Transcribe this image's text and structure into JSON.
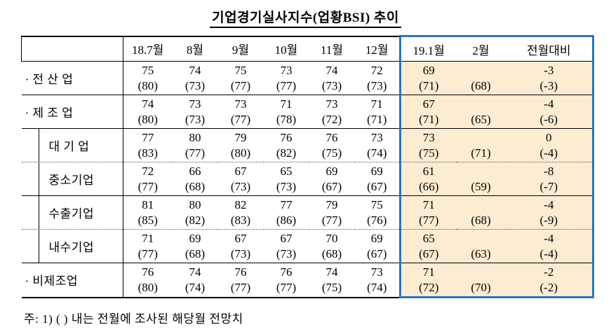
{
  "title": "기업경기실사지수(업황BSI) 추이",
  "note": "주: 1) (  ) 내는 전월에 조사된 해당월 전망치",
  "highlight": {
    "fill": "#fdecd2",
    "border": "#2e74b5"
  },
  "columns": [
    "",
    "18.7월",
    "8월",
    "9월",
    "10월",
    "11월",
    "12월",
    "19.1월",
    "2월",
    "전월대비"
  ],
  "rows": [
    {
      "label": "· 전 산 업",
      "indent": false,
      "sep": "solid",
      "values": [
        [
          "75",
          "(80)"
        ],
        [
          "74",
          "(73)"
        ],
        [
          "75",
          "(77)"
        ],
        [
          "73",
          "(77)"
        ],
        [
          "74",
          "(73)"
        ],
        [
          "72",
          "(73)"
        ],
        [
          "69",
          "(71)"
        ],
        [
          "",
          "(68)"
        ],
        [
          "-3",
          "(-3)"
        ]
      ]
    },
    {
      "label": "· 제 조 업",
      "indent": false,
      "sep": "solid",
      "values": [
        [
          "74",
          "(80)"
        ],
        [
          "73",
          "(73)"
        ],
        [
          "73",
          "(77)"
        ],
        [
          "71",
          "(78)"
        ],
        [
          "73",
          "(72)"
        ],
        [
          "71",
          "(71)"
        ],
        [
          "67",
          "(71)"
        ],
        [
          "",
          "(65)"
        ],
        [
          "-4",
          "(-6)"
        ]
      ]
    },
    {
      "label": "대 기 업",
      "indent": true,
      "sep": "dotted",
      "values": [
        [
          "77",
          "(83)"
        ],
        [
          "80",
          "(77)"
        ],
        [
          "79",
          "(80)"
        ],
        [
          "76",
          "(82)"
        ],
        [
          "76",
          "(75)"
        ],
        [
          "73",
          "(74)"
        ],
        [
          "73",
          "(75)"
        ],
        [
          "",
          "(71)"
        ],
        [
          "0",
          "(-4)"
        ]
      ]
    },
    {
      "label": "중소기업",
      "indent": true,
      "sep": "solid",
      "values": [
        [
          "72",
          "(77)"
        ],
        [
          "66",
          "(68)"
        ],
        [
          "67",
          "(73)"
        ],
        [
          "65",
          "(73)"
        ],
        [
          "69",
          "(67)"
        ],
        [
          "69",
          "(67)"
        ],
        [
          "61",
          "(66)"
        ],
        [
          "",
          "(59)"
        ],
        [
          "-8",
          "(-7)"
        ]
      ]
    },
    {
      "label": "수출기업",
      "indent": true,
      "sep": "dotted",
      "values": [
        [
          "81",
          "(85)"
        ],
        [
          "80",
          "(82)"
        ],
        [
          "82",
          "(83)"
        ],
        [
          "77",
          "(86)"
        ],
        [
          "79",
          "(77)"
        ],
        [
          "75",
          "(76)"
        ],
        [
          "71",
          "(77)"
        ],
        [
          "",
          "(68)"
        ],
        [
          "-4",
          "(-9)"
        ]
      ]
    },
    {
      "label": "내수기업",
      "indent": true,
      "sep": "solid",
      "values": [
        [
          "71",
          "(77)"
        ],
        [
          "69",
          "(68)"
        ],
        [
          "67",
          "(73)"
        ],
        [
          "67",
          "(73)"
        ],
        [
          "70",
          "(68)"
        ],
        [
          "69",
          "(67)"
        ],
        [
          "65",
          "(67)"
        ],
        [
          "",
          "(63)"
        ],
        [
          "-4",
          "(-4)"
        ]
      ]
    },
    {
      "label": "· 비제조업",
      "indent": false,
      "sep": "last",
      "values": [
        [
          "76",
          "(80)"
        ],
        [
          "74",
          "(74)"
        ],
        [
          "76",
          "(77)"
        ],
        [
          "76",
          "(77)"
        ],
        [
          "74",
          "(75)"
        ],
        [
          "73",
          "(74)"
        ],
        [
          "71",
          "(72)"
        ],
        [
          "",
          "(70)"
        ],
        [
          "-2",
          "(-2)"
        ]
      ]
    }
  ]
}
